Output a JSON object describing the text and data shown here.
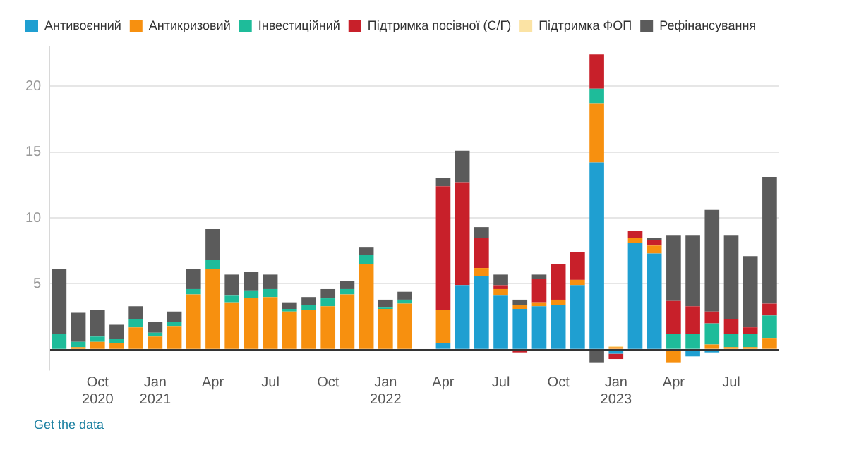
{
  "chart_data": {
    "type": "bar",
    "stacked": true,
    "categories": [
      null,
      null,
      "Oct 2020",
      null,
      null,
      "Jan 2021",
      null,
      null,
      "Apr",
      null,
      null,
      "Jul",
      null,
      null,
      "Oct",
      null,
      null,
      "Jan 2022",
      null,
      null,
      "Apr",
      null,
      null,
      "Jul",
      null,
      null,
      "Oct",
      null,
      null,
      "Jan 2023",
      null,
      null,
      "Apr",
      null,
      null,
      "Jul",
      null,
      null
    ],
    "series": [
      {
        "name": "Антивоєнний",
        "color": "#1f9fd1",
        "values": [
          null,
          null,
          null,
          null,
          null,
          null,
          null,
          null,
          null,
          null,
          null,
          null,
          null,
          null,
          null,
          null,
          null,
          null,
          null,
          null,
          0.5,
          4.9,
          5.6,
          4.1,
          3.1,
          3.3,
          3.4,
          4.9,
          14.2,
          -0.3,
          8.1,
          7.3,
          null,
          -0.5,
          -0.2,
          null,
          null,
          null
        ]
      },
      {
        "name": "Антикризовий",
        "color": "#f7900f",
        "values": [
          null,
          0.2,
          0.6,
          0.5,
          1.7,
          1.0,
          1.8,
          4.2,
          6.1,
          3.6,
          3.9,
          4.0,
          2.9,
          3.0,
          3.3,
          4.2,
          6.5,
          3.1,
          3.5,
          null,
          2.5,
          null,
          0.6,
          0.5,
          0.3,
          0.3,
          0.4,
          0.4,
          4.5,
          0.2,
          0.4,
          0.6,
          -1.0,
          null,
          0.4,
          0.2,
          0.2,
          0.9
        ]
      },
      {
        "name": "Інвестиційний",
        "color": "#1ebc9a",
        "values": [
          1.2,
          0.4,
          0.4,
          0.3,
          0.6,
          0.3,
          0.3,
          0.4,
          0.7,
          0.5,
          0.6,
          0.6,
          0.2,
          0.4,
          0.6,
          0.4,
          0.7,
          0.1,
          0.3,
          null,
          null,
          null,
          null,
          null,
          null,
          null,
          null,
          null,
          1.1,
          null,
          null,
          null,
          1.2,
          1.2,
          1.6,
          1.0,
          1.0,
          1.7
        ]
      },
      {
        "name": "Підтримка посівної (С/Г)",
        "color": "#c8202a",
        "values": [
          null,
          null,
          null,
          null,
          null,
          null,
          null,
          null,
          null,
          null,
          null,
          null,
          null,
          null,
          null,
          null,
          null,
          null,
          null,
          null,
          9.4,
          7.8,
          2.3,
          0.3,
          -0.2,
          1.8,
          2.7,
          2.1,
          2.6,
          -0.4,
          0.5,
          0.4,
          2.5,
          2.1,
          0.9,
          1.1,
          0.5,
          0.9
        ]
      },
      {
        "name": "Підтримка ФОП",
        "color": "#fbe3a4",
        "values": [
          null,
          null,
          null,
          null,
          null,
          null,
          null,
          null,
          null,
          null,
          null,
          null,
          null,
          null,
          null,
          null,
          null,
          null,
          null,
          null,
          null,
          null,
          null,
          null,
          null,
          null,
          null,
          null,
          null,
          0.1,
          null,
          null,
          null,
          null,
          null,
          null,
          null,
          null
        ]
      },
      {
        "name": "Рефінансування",
        "color": "#5b5b5b",
        "values": [
          4.9,
          2.2,
          2.0,
          1.1,
          1.0,
          0.8,
          0.8,
          1.5,
          2.4,
          1.6,
          1.4,
          1.1,
          0.5,
          0.6,
          0.7,
          0.6,
          0.6,
          0.6,
          0.6,
          null,
          0.6,
          2.4,
          0.8,
          0.8,
          0.4,
          0.3,
          null,
          null,
          -1.0,
          null,
          null,
          0.2,
          5.0,
          5.4,
          7.7,
          6.4,
          5.4,
          9.6
        ]
      }
    ],
    "ylim": [
      -1.5,
      23
    ],
    "yticks": [
      {
        "value": 0,
        "label": null
      },
      5,
      10,
      15,
      20
    ],
    "grid": "y",
    "legend": "top left",
    "annotations": [
      "Get the data"
    ]
  }
}
